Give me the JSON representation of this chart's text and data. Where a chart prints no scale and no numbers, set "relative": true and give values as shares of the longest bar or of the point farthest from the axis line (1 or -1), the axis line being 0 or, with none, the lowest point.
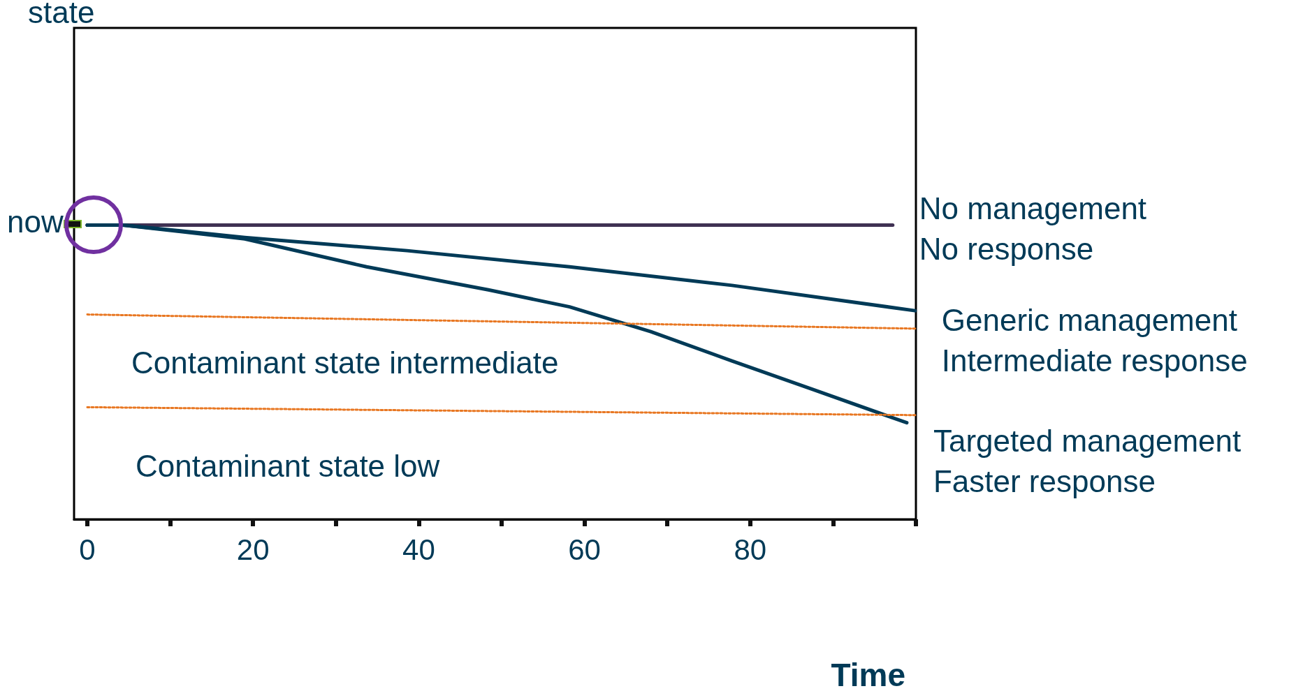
{
  "chart_data": {
    "type": "line",
    "relative": true,
    "xlabel": "Time",
    "xlim": [
      -1.6,
      100
    ],
    "xticks": [
      0,
      {
        "value": 10,
        "label": null
      },
      20,
      {
        "value": 30,
        "label": null
      },
      40,
      {
        "value": 50,
        "label": null
      },
      60,
      {
        "value": 70,
        "label": null
      },
      80,
      {
        "value": 90,
        "label": null
      },
      {
        "value": 100,
        "label": null
      }
    ],
    "series": [
      {
        "name": "No management\nNo response",
        "color": "#3f3153",
        "x": [
          0,
          97.2
        ],
        "values": [
          1,
          1
        ]
      },
      {
        "name": "Generic management\nIntermediate response",
        "color": "#003a57",
        "x": [
          0,
          4.3,
          19,
          38.6,
          58.2,
          77.8,
          99.9
        ],
        "values": [
          1,
          1,
          0.958,
          0.913,
          0.858,
          0.795,
          0.709
        ]
      },
      {
        "name": "Targeted management\nFaster response",
        "color": "#003a57",
        "x": [
          0,
          4.3,
          19,
          33.7,
          48.4,
          58.2,
          68,
          77.8,
          87.6,
          98.9
        ],
        "values": [
          1,
          1,
          0.953,
          0.858,
          0.78,
          0.722,
          0.638,
          0.538,
          0.441,
          0.328
        ]
      },
      {
        "color": "#e87722",
        "line_style": "dotted",
        "x": [
          0,
          100
        ],
        "values": [
          0.696,
          0.648
        ]
      },
      {
        "color": "#e87722",
        "line_style": "dotted",
        "x": [
          0,
          100
        ],
        "values": [
          0.381,
          0.354
        ]
      }
    ],
    "annotations": [
      {
        "text": "now",
        "x": 0,
        "y": 1
      },
      "Contaminant state intermediate",
      "Contaminant state low",
      "state"
    ],
    "marker": "none",
    "legend": false,
    "grid": false
  }
}
